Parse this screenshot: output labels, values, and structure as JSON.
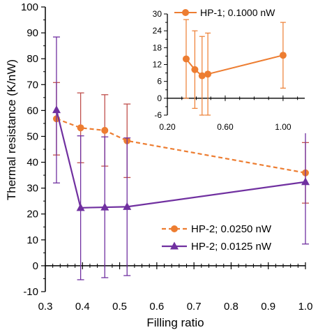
{
  "chart_data": [
    {
      "type": "line",
      "xlabel": "Filling ratio",
      "ylabel": "Thermal resistance (K/nW)",
      "xlim": [
        0.3,
        1.0
      ],
      "ylim": [
        -10,
        100
      ],
      "x_ticks": [
        "0.3",
        "0.4",
        "0.5",
        "0.6",
        "0.7",
        "0.8",
        "0.9",
        "1.0"
      ],
      "y_ticks": [
        "-10",
        "0",
        "10",
        "20",
        "30",
        "40",
        "50",
        "60",
        "70",
        "80",
        "90",
        "100"
      ],
      "legend_position": "lower-right",
      "series": [
        {
          "name": "HP-2; 0.0250 nW",
          "color": "#ED7D31",
          "err_color": "#C0504D",
          "style": "dashed",
          "marker": "circle",
          "x": [
            0.33,
            0.395,
            0.46,
            0.52,
            1.0
          ],
          "y": [
            56.8,
            53.3,
            52.3,
            48.3,
            35.9
          ],
          "err": [
            14.0,
            13.5,
            13.8,
            14.2,
            11.7
          ]
        },
        {
          "name": "HP-2; 0.0125 nW",
          "color": "#7030A0",
          "err_color": "#7030A0",
          "style": "solid",
          "marker": "triangle",
          "x": [
            0.33,
            0.395,
            0.46,
            0.52,
            1.0
          ],
          "y": [
            60.2,
            22.4,
            22.6,
            22.8,
            32.4
          ],
          "err": [
            28.2,
            27.8,
            27.2,
            26.6,
            24.0
          ]
        }
      ]
    },
    {
      "type": "line",
      "xlim": [
        0.2,
        1.15
      ],
      "ylim": [
        -6,
        30
      ],
      "x_ticks": [
        "0.20",
        "0.60",
        "1.00"
      ],
      "y_ticks": [
        "-6",
        "0",
        "6",
        "12",
        "18",
        "24",
        "30"
      ],
      "legend_position": "top-right",
      "series": [
        {
          "name": "HP-1; 0.1000 nW",
          "color": "#ED7D31",
          "err_color": "#ED7D31",
          "style": "solid",
          "marker": "circle",
          "x": [
            0.33,
            0.39,
            0.44,
            0.48,
            1.0
          ],
          "y": [
            14.0,
            10.2,
            8.0,
            8.6,
            15.3
          ],
          "err": [
            14.0,
            13.8,
            14.0,
            14.6,
            11.7
          ]
        }
      ]
    }
  ]
}
